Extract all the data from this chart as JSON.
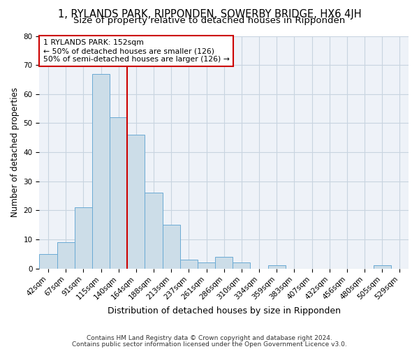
{
  "title": "1, RYLANDS PARK, RIPPONDEN, SOWERBY BRIDGE, HX6 4JH",
  "subtitle": "Size of property relative to detached houses in Ripponden",
  "xlabel": "Distribution of detached houses by size in Ripponden",
  "ylabel": "Number of detached properties",
  "bar_labels": [
    "42sqm",
    "67sqm",
    "91sqm",
    "115sqm",
    "140sqm",
    "164sqm",
    "188sqm",
    "213sqm",
    "237sqm",
    "261sqm",
    "286sqm",
    "310sqm",
    "334sqm",
    "359sqm",
    "383sqm",
    "407sqm",
    "432sqm",
    "456sqm",
    "480sqm",
    "505sqm",
    "529sqm"
  ],
  "bar_values": [
    5,
    9,
    21,
    67,
    52,
    46,
    26,
    15,
    3,
    2,
    4,
    2,
    0,
    1,
    0,
    0,
    0,
    0,
    0,
    1,
    0
  ],
  "bar_color": "#ccdde8",
  "bar_edge_color": "#6aaad4",
  "grid_color": "#c8d4e0",
  "background_color": "#eef2f8",
  "vline_x_index": 4.5,
  "vline_color": "#cc0000",
  "annotation_text": "1 RYLANDS PARK: 152sqm\n← 50% of detached houses are smaller (126)\n50% of semi-detached houses are larger (126) →",
  "annotation_box_color": "#cc0000",
  "ylim": [
    0,
    80
  ],
  "yticks": [
    0,
    10,
    20,
    30,
    40,
    50,
    60,
    70,
    80
  ],
  "footer_line1": "Contains HM Land Registry data © Crown copyright and database right 2024.",
  "footer_line2": "Contains public sector information licensed under the Open Government Licence v3.0.",
  "title_fontsize": 10.5,
  "subtitle_fontsize": 9.5,
  "tick_fontsize": 7.5,
  "ylabel_fontsize": 8.5,
  "xlabel_fontsize": 9,
  "annotation_fontsize": 7.8,
  "footer_fontsize": 6.5
}
